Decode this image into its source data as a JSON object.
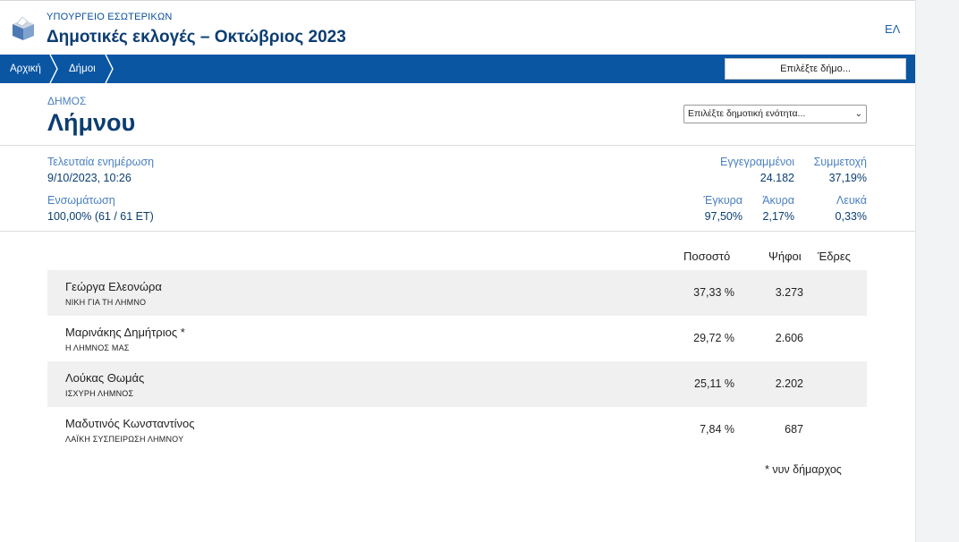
{
  "header": {
    "ministry": "ΥΠΟΥΡΓΕΙΟ ΕΣΩΤΕΡΙΚΩΝ",
    "title": "Δημοτικές εκλογές – Οκτώβριος 2023",
    "lang": "ΕΛ",
    "logo_icon": "ballot-box-icon"
  },
  "nav": {
    "breadcrumbs": [
      "Αρχική",
      "Δήμοι"
    ],
    "municipality_select": "Επιλέξτε δήμο..."
  },
  "municipality": {
    "label": "ΔΗΜΟΣ",
    "name": "Λήμνου",
    "unit_select": "Επιλέξτε δημοτική ενότητα..."
  },
  "stats": {
    "last_update_label": "Τελευταία ενημέρωση",
    "last_update_value": "9/10/2023, 10:26",
    "integration_label": "Ενσωμάτωση",
    "integration_value": "100,00% (61 / 61 ΕΤ)",
    "registered_label": "Εγγεγραμμένοι",
    "registered_value": "24.182",
    "turnout_label": "Συμμετοχή",
    "turnout_value": "37,19%",
    "valid_label": "Έγκυρα",
    "valid_value": "97,50%",
    "invalid_label": "Άκυρα",
    "invalid_value": "2,17%",
    "blank_label": "Λευκά",
    "blank_value": "0,33%"
  },
  "results": {
    "columns": [
      "Ποσοστό",
      "Ψήφοι",
      "Έδρες"
    ],
    "rows": [
      {
        "name": "Γεώργα Ελεονώρα",
        "party": "ΝΙΚΗ ΓΙΑ ΤΗ ΛΗΜΝΟ",
        "percent": "37,33 %",
        "votes": "3.273",
        "seats": ""
      },
      {
        "name": "Μαρινάκης Δημήτριος *",
        "party": "Η ΛΗΜΝΟΣ ΜΑΣ",
        "percent": "29,72 %",
        "votes": "2.606",
        "seats": ""
      },
      {
        "name": "Λούκας Θωμάς",
        "party": "ΙΣΧΥΡΗ ΛΗΜΝΟΣ",
        "percent": "25,11 %",
        "votes": "2.202",
        "seats": ""
      },
      {
        "name": "Μαδυτινός Κωνσταντίνος",
        "party": "ΛΑΪΚΗ ΣΥΣΠΕΙΡΩΣΗ ΛΗΜΝΟΥ",
        "percent": "7,84 %",
        "votes": "687",
        "seats": ""
      }
    ],
    "footnote": "* νυν δήμαρχος"
  },
  "colors": {
    "brand_blue": "#0a56a3",
    "title_navy": "#0b3d72",
    "label_blue": "#4a7fc1",
    "row_alt": "#f0f0f0"
  }
}
